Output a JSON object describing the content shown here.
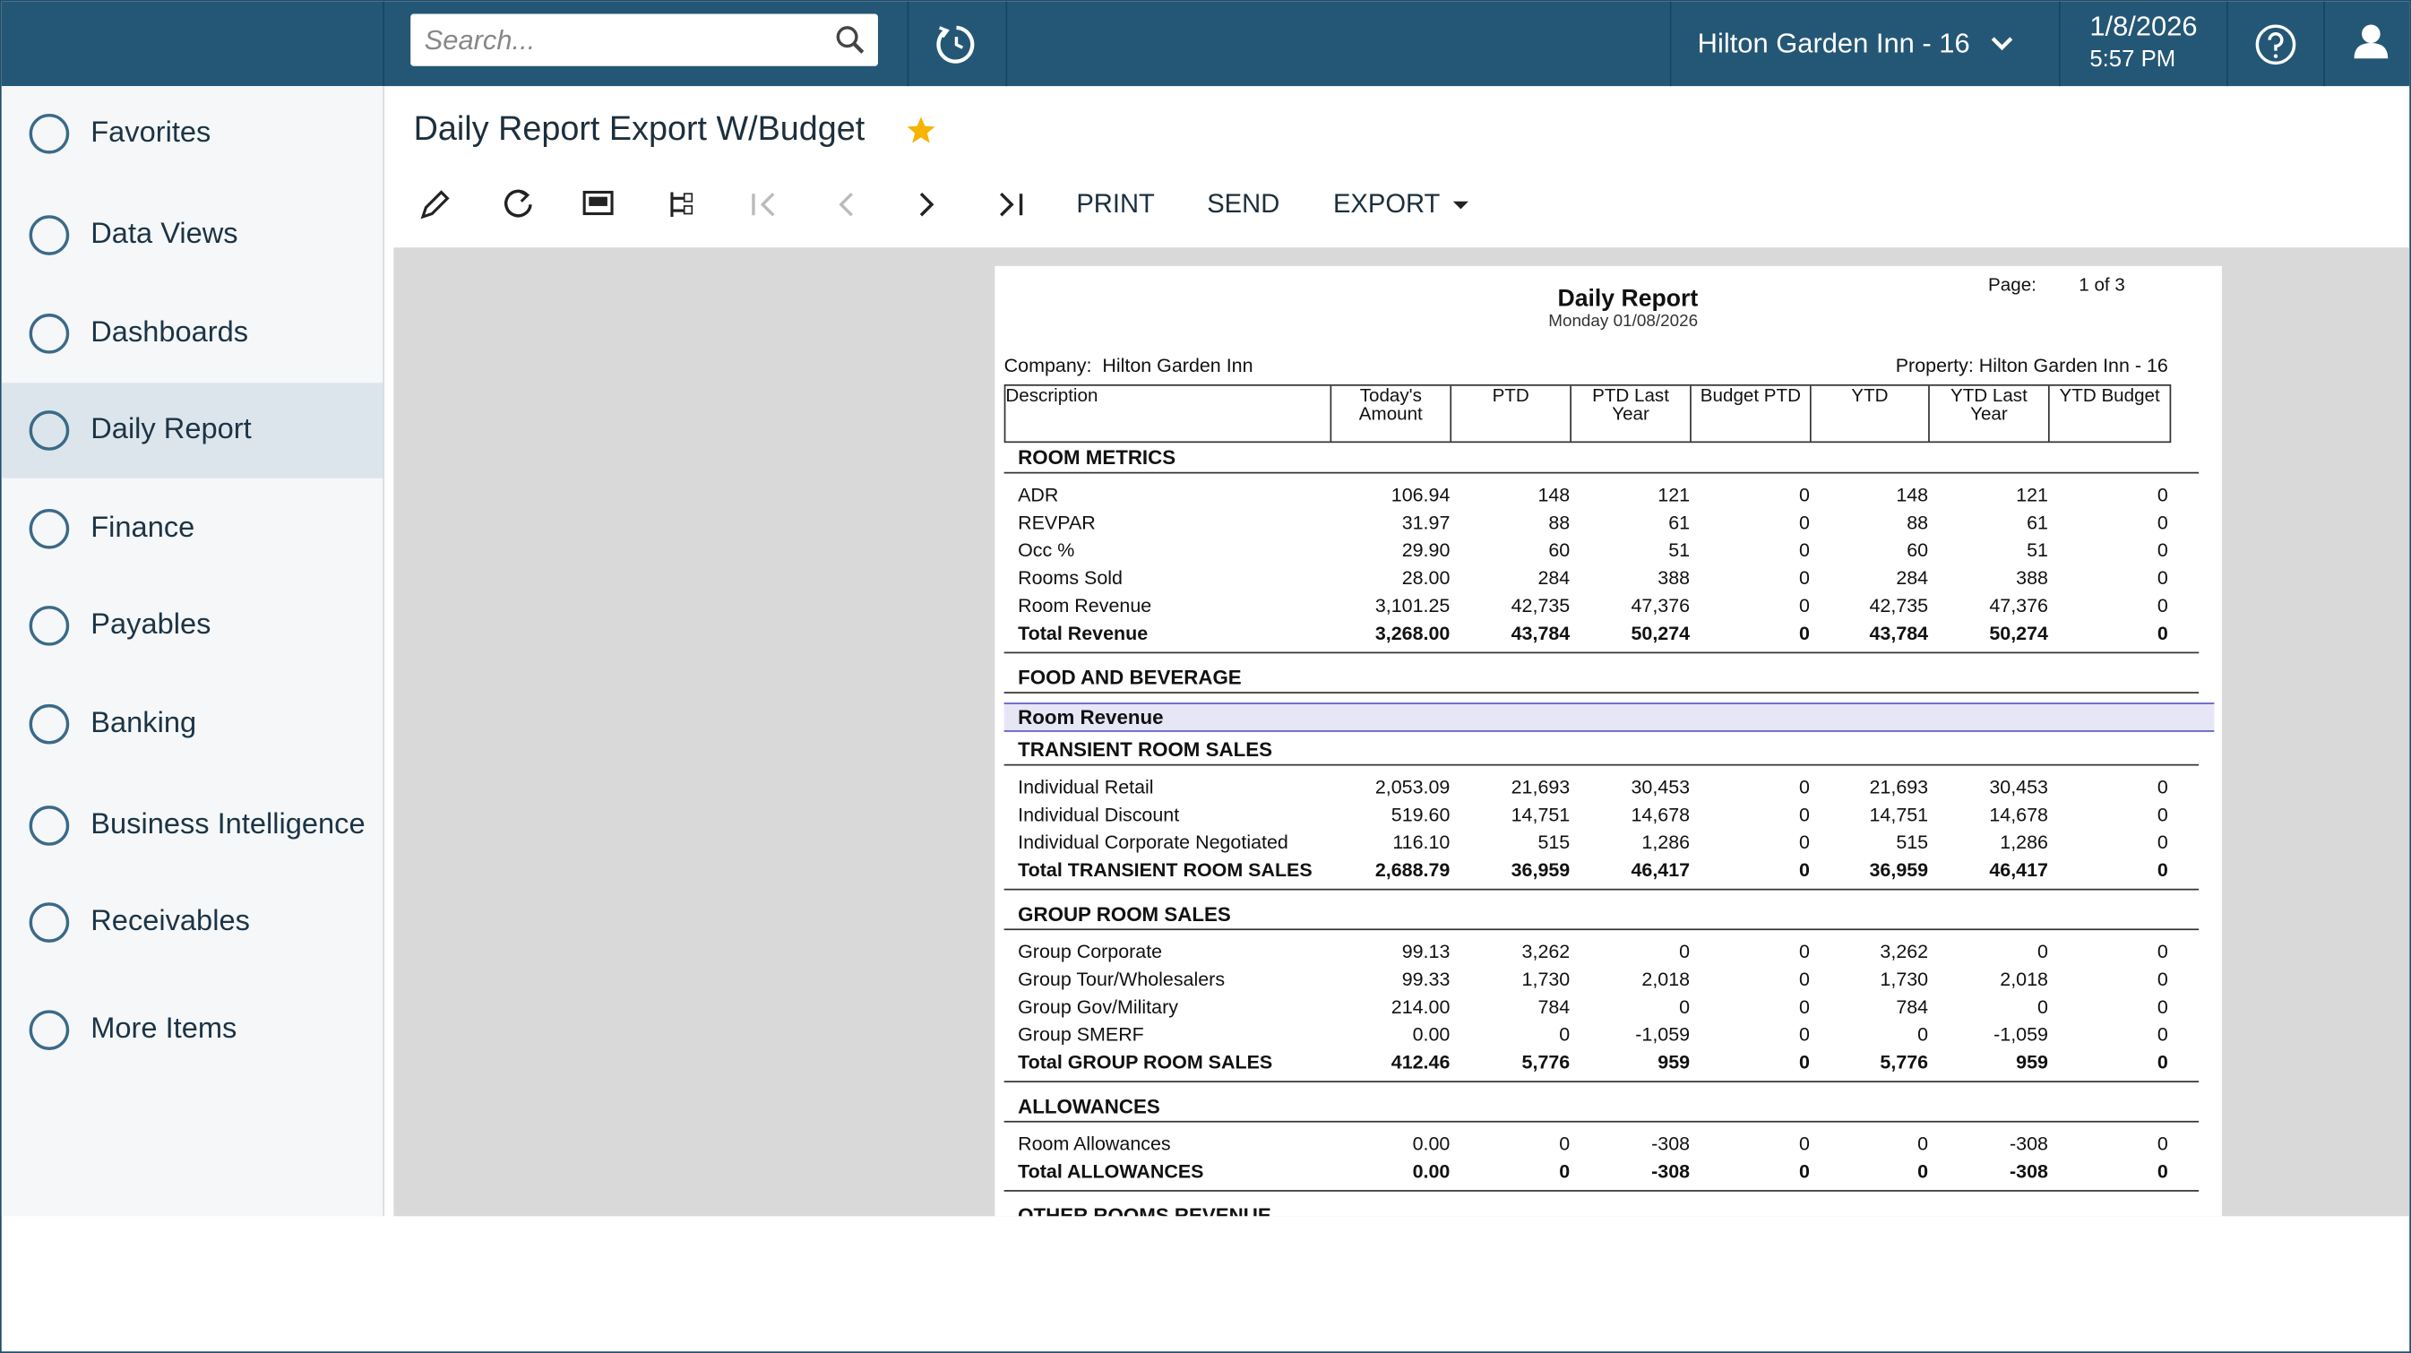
{
  "header": {
    "search_placeholder": "Search...",
    "property": "Hilton Garden Inn - 16",
    "date": "1/8/2026",
    "time": "5:57 PM"
  },
  "sidebar": [
    "Favorites",
    "Data Views",
    "Dashboards",
    "Daily Report",
    "Finance",
    "Payables",
    "Banking",
    "Business Intelligence",
    "Receivables",
    "More Items"
  ],
  "page": {
    "title": "Daily Report Export W/Budget",
    "toolbar": [
      "PRINT",
      "SEND",
      "EXPORT"
    ]
  },
  "report": {
    "title": "Daily Report",
    "date": "Monday 01/08/2026",
    "page_label": "Page:",
    "page_value": "1 of 3",
    "company": "Company:  Hilton Garden Inn",
    "property": "Property: Hilton Garden Inn - 16",
    "columns": [
      "Description",
      "Today's Amount",
      "PTD",
      "PTD Last Year",
      "Budget PTD",
      "YTD",
      "YTD Last Year",
      "YTD Budget"
    ],
    "blocks": [
      {
        "heading": "ROOM METRICS",
        "rows": [
          [
            "ADR",
            "106.94",
            "148",
            "121",
            "0",
            "148",
            "121",
            "0"
          ],
          [
            "REVPAR",
            "31.97",
            "88",
            "61",
            "0",
            "88",
            "61",
            "0"
          ],
          [
            "Occ %",
            "29.90",
            "60",
            "51",
            "0",
            "60",
            "51",
            "0"
          ],
          [
            "Rooms Sold",
            "28.00",
            "284",
            "388",
            "0",
            "284",
            "388",
            "0"
          ],
          [
            "Room Revenue",
            "3,101.25",
            "42,735",
            "47,376",
            "0",
            "42,735",
            "47,376",
            "0"
          ],
          [
            "Total Revenue",
            "3,268.00",
            "43,784",
            "50,274",
            "0",
            "43,784",
            "50,274",
            "0"
          ]
        ]
      },
      {
        "heading": "FOOD AND BEVERAGE",
        "rows": []
      },
      {
        "band": "Room Revenue"
      },
      {
        "heading": "TRANSIENT ROOM SALES",
        "rows": [
          [
            "Individual Retail",
            "2,053.09",
            "21,693",
            "30,453",
            "0",
            "21,693",
            "30,453",
            "0"
          ],
          [
            "Individual Discount",
            "519.60",
            "14,751",
            "14,678",
            "0",
            "14,751",
            "14,678",
            "0"
          ],
          [
            "Individual Corporate Negotiated",
            "116.10",
            "515",
            "1,286",
            "0",
            "515",
            "1,286",
            "0"
          ],
          [
            "Total TRANSIENT ROOM SALES",
            "2,688.79",
            "36,959",
            "46,417",
            "0",
            "36,959",
            "46,417",
            "0"
          ]
        ]
      },
      {
        "heading": "GROUP ROOM SALES",
        "rows": [
          [
            "Group Corporate",
            "99.13",
            "3,262",
            "0",
            "0",
            "3,262",
            "0",
            "0"
          ],
          [
            "Group Tour/Wholesalers",
            "99.33",
            "1,730",
            "2,018",
            "0",
            "1,730",
            "2,018",
            "0"
          ],
          [
            "Group Gov/Military",
            "214.00",
            "784",
            "0",
            "0",
            "784",
            "0",
            "0"
          ],
          [
            "Group SMERF",
            "0.00",
            "0",
            "-1,059",
            "0",
            "0",
            "-1,059",
            "0"
          ],
          [
            "Total GROUP ROOM SALES",
            "412.46",
            "5,776",
            "959",
            "0",
            "5,776",
            "959",
            "0"
          ]
        ]
      },
      {
        "heading": "ALLOWANCES",
        "rows": [
          [
            "Room Allowances",
            "0.00",
            "0",
            "-308",
            "0",
            "0",
            "-308",
            "0"
          ],
          [
            "Total ALLOWANCES",
            "0.00",
            "0",
            "-308",
            "0",
            "0",
            "-308",
            "0"
          ]
        ]
      },
      {
        "heading": "OTHER ROOMS REVENUE",
        "rows": []
      }
    ]
  }
}
